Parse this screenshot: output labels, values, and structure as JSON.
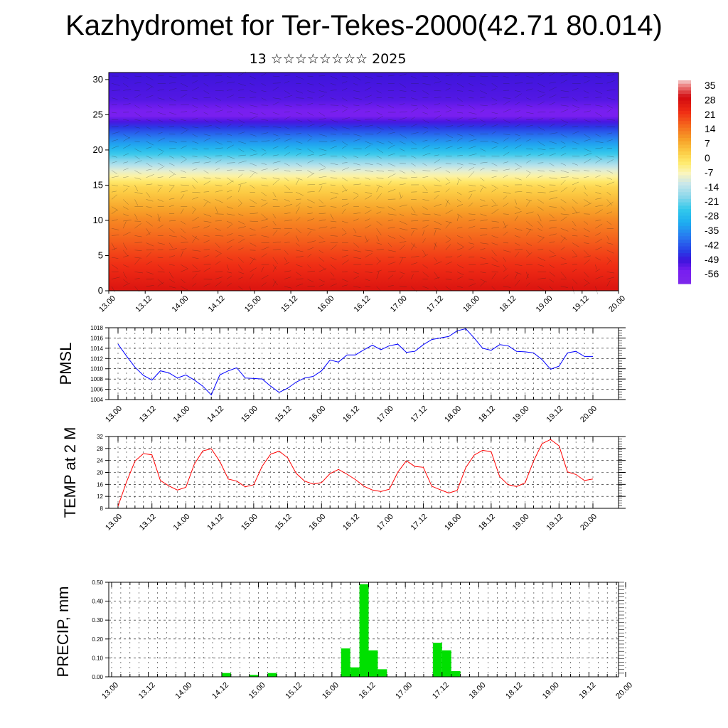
{
  "title": "Kazhydromet for Ter-Tekes-2000(42.71 80.014)",
  "subtitle": "13 ☆☆☆☆☆☆☆☆ 2025",
  "colorbar": {
    "labels": [
      "35",
      "28",
      "21",
      "14",
      "7",
      "0",
      "-7",
      "-14",
      "-21",
      "-28",
      "-35",
      "-42",
      "-49",
      "-56"
    ]
  },
  "chart_data": [
    {
      "type": "heatmap",
      "name": "cross-section",
      "x_ticks": [
        "13.00",
        "13.12",
        "14.00",
        "14.12",
        "15.00",
        "15.12",
        "16.00",
        "16.12",
        "17.00",
        "17.12",
        "18.00",
        "18.12",
        "19.00",
        "19.12",
        "20.00"
      ],
      "y_ticks": [
        "0",
        "5",
        "10",
        "15",
        "20",
        "25",
        "30"
      ],
      "ylim": [
        0,
        31
      ],
      "value_range": [
        -56,
        35
      ],
      "level_profile": [
        {
          "level": 0,
          "value": 26
        },
        {
          "level": 5,
          "value": 19
        },
        {
          "level": 10,
          "value": 11
        },
        {
          "level": 15,
          "value": 0
        },
        {
          "level": 17,
          "value": -10
        },
        {
          "level": 20,
          "value": -28
        },
        {
          "level": 23,
          "value": -44
        },
        {
          "level": 25,
          "value": -56
        },
        {
          "level": 27,
          "value": -51
        },
        {
          "level": 31,
          "value": -49
        }
      ]
    },
    {
      "type": "line",
      "ylabel": "PMSL",
      "y_ticks": [
        "1004",
        "1006",
        "1008",
        "1010",
        "1012",
        "1014",
        "1016",
        "1018"
      ],
      "ylim": [
        1004,
        1018
      ],
      "x_ticks": [
        "13.00",
        "13.12",
        "14.00",
        "14.12",
        "15.00",
        "15.12",
        "16.00",
        "16.12",
        "17.00",
        "17.12",
        "18.00",
        "18.12",
        "19.00",
        "19.12",
        "20.00"
      ],
      "color": "#0000ff",
      "values": [
        1014.8,
        1012.5,
        1010.3,
        1008.7,
        1007.8,
        1009.6,
        1009.2,
        1008.2,
        1008.8,
        1007.8,
        1006.6,
        1004.9,
        1008.8,
        1009.6,
        1010.2,
        1008.2,
        1008.1,
        1008.0,
        1006.6,
        1005.4,
        1006.2,
        1007.4,
        1008.2,
        1008.5,
        1009.6,
        1011.7,
        1011.3,
        1012.7,
        1012.7,
        1013.7,
        1014.6,
        1013.7,
        1014.5,
        1014.8,
        1013.2,
        1013.4,
        1014.7,
        1015.7,
        1016.0,
        1016.3,
        1017.4,
        1017.8,
        1016.0,
        1014.0,
        1013.6,
        1014.7,
        1014.5,
        1013.4,
        1013.3,
        1013.1,
        1011.8,
        1009.9,
        1010.5,
        1013.1,
        1013.4,
        1012.4,
        1012.4
      ]
    },
    {
      "type": "line",
      "ylabel": "TEMP at 2 M",
      "y_ticks": [
        "8",
        "12",
        "16",
        "20",
        "24",
        "28",
        "32"
      ],
      "ylim": [
        8,
        32
      ],
      "x_ticks": [
        "13.00",
        "13.12",
        "14.00",
        "14.12",
        "15.00",
        "15.12",
        "16.00",
        "16.12",
        "17.00",
        "17.12",
        "18.00",
        "18.12",
        "19.00",
        "19.12",
        "20.00"
      ],
      "color": "#ff0000",
      "values": [
        8.7,
        16.8,
        23.8,
        26.3,
        25.9,
        17.3,
        15.5,
        14.1,
        15.0,
        22.8,
        27.2,
        27.9,
        23.7,
        17.8,
        17.1,
        15.2,
        15.9,
        22.1,
        26.1,
        27.1,
        24.9,
        19.7,
        17.1,
        16.1,
        16.6,
        19.6,
        21.0,
        19.4,
        17.6,
        15.4,
        14.1,
        13.6,
        14.4,
        20.1,
        23.9,
        22.0,
        21.7,
        15.4,
        14.2,
        13.1,
        14.0,
        21.6,
        25.8,
        27.4,
        26.9,
        18.6,
        15.9,
        15.3,
        16.5,
        23.8,
        29.6,
        31.0,
        28.9,
        20.2,
        19.3,
        17.3,
        17.8
      ]
    },
    {
      "type": "bar",
      "ylabel": "PRECIP, mm",
      "y_ticks": [
        "0.00",
        "0.10",
        "0.20",
        "0.30",
        "0.40",
        "0.50"
      ],
      "ylim": [
        0,
        0.5
      ],
      "x_ticks": [
        "13.00",
        "13.12",
        "14.00",
        "14.12",
        "15.00",
        "15.12",
        "16.00",
        "16.12",
        "17.00",
        "17.12",
        "18.00",
        "18.12",
        "19.00",
        "19.12",
        "20.00"
      ],
      "color": "#00e000",
      "values": [
        0,
        0,
        0,
        0,
        0,
        0,
        0,
        0,
        0,
        0,
        0,
        0,
        0.02,
        0,
        0,
        0.01,
        0,
        0.02,
        0,
        0,
        0,
        0,
        0,
        0,
        0,
        0.15,
        0.05,
        0.49,
        0.14,
        0.04,
        0,
        0,
        0,
        0,
        0,
        0.18,
        0.14,
        0.03,
        0,
        0,
        0,
        0,
        0,
        0,
        0,
        0,
        0,
        0,
        0,
        0,
        0,
        0,
        0,
        0,
        0,
        0
      ]
    }
  ]
}
